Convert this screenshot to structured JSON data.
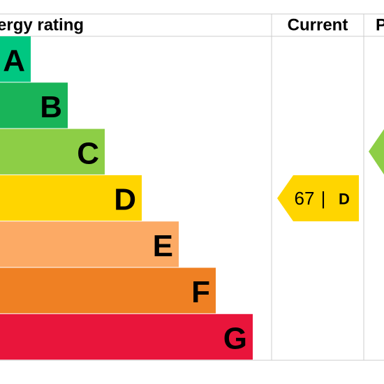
{
  "header": {
    "rating_title": "ergy rating",
    "current_title": "Current",
    "potential_title": "P"
  },
  "bands": [
    {
      "letter": "A",
      "color": "#00c781"
    },
    {
      "letter": "B",
      "color": "#19b459"
    },
    {
      "letter": "C",
      "color": "#8dce46"
    },
    {
      "letter": "D",
      "color": "#ffd500"
    },
    {
      "letter": "E",
      "color": "#fcaa65"
    },
    {
      "letter": "F",
      "color": "#ef8023"
    },
    {
      "letter": "G",
      "color": "#e9153b"
    }
  ],
  "current": {
    "score": 67,
    "separator": "|",
    "rating": "D"
  }
}
